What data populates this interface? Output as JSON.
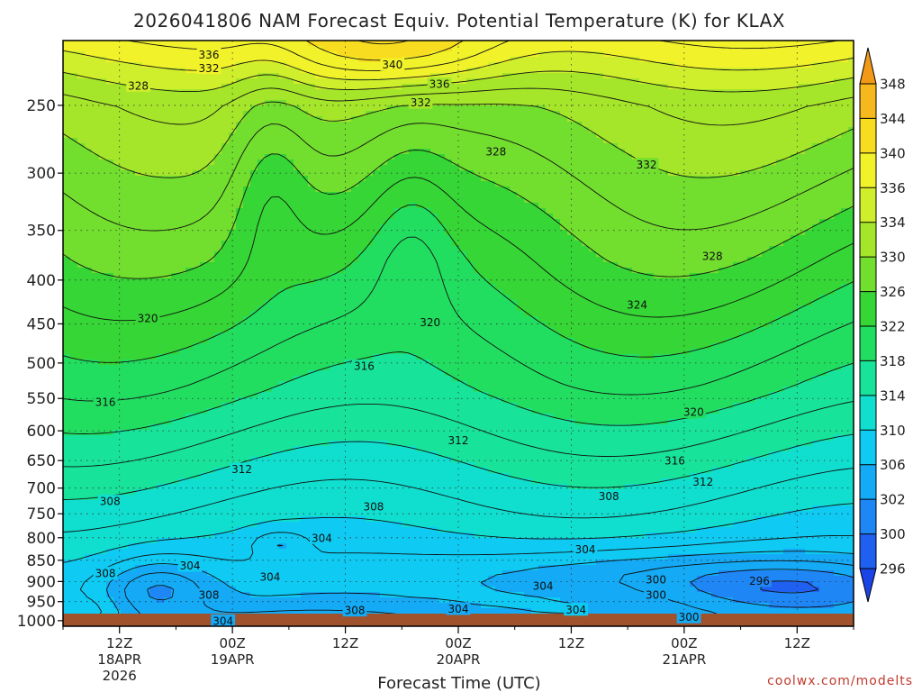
{
  "chart_data": {
    "type": "heatmap",
    "title": "2026041806 NAM Forecast Equiv. Potential Temperature (K) for KLAX",
    "xlabel": "Forecast Time (UTC)",
    "ylabel": "",
    "credit": "coolwx.com/modelts",
    "x_unit": "forecast hours from 2026-04-18 06Z",
    "xlim": [
      0,
      84
    ],
    "y_scale": "log",
    "ylim": [
      1015,
      210
    ],
    "y_ticks": [
      250,
      300,
      350,
      400,
      450,
      500,
      550,
      600,
      650,
      700,
      750,
      800,
      850,
      900,
      950,
      1000
    ],
    "x_ticks": [
      {
        "hour": 6,
        "label": "12Z",
        "sub": [
          "18APR",
          "2026"
        ]
      },
      {
        "hour": 18,
        "label": "00Z",
        "sub": [
          "19APR"
        ]
      },
      {
        "hour": 30,
        "label": "12Z",
        "sub": []
      },
      {
        "hour": 42,
        "label": "00Z",
        "sub": [
          "20APR"
        ]
      },
      {
        "hour": 54,
        "label": "12Z",
        "sub": []
      },
      {
        "hour": 66,
        "label": "00Z",
        "sub": [
          "21APR"
        ]
      },
      {
        "hour": 78,
        "label": "12Z",
        "sub": []
      }
    ],
    "colorbar": {
      "levels": [
        296,
        300,
        302,
        306,
        310,
        314,
        318,
        322,
        326,
        330,
        334,
        336,
        340,
        344,
        348
      ],
      "colors": [
        "#1a44e6",
        "#2060f0",
        "#1e86f5",
        "#14aaf5",
        "#0fcaf2",
        "#10dfd0",
        "#18e39a",
        "#22de60",
        "#35d635",
        "#72de2e",
        "#a6e62a",
        "#cfee2c",
        "#f2f22a",
        "#f8dc1f",
        "#f6b81c",
        "#f29a18"
      ]
    },
    "ground_color": "#a0522d",
    "contour_labels": [
      {
        "x": 15.5,
        "p": 218,
        "text": "336"
      },
      {
        "x": 15.5,
        "p": 226,
        "text": "332"
      },
      {
        "x": 8,
        "p": 237,
        "text": "328"
      },
      {
        "x": 35,
        "p": 224,
        "text": "340"
      },
      {
        "x": 40,
        "p": 236,
        "text": "336"
      },
      {
        "x": 38,
        "p": 248,
        "text": "332"
      },
      {
        "x": 46,
        "p": 283,
        "text": "328"
      },
      {
        "x": 62,
        "p": 293,
        "text": "332"
      },
      {
        "x": 69,
        "p": 375,
        "text": "328"
      },
      {
        "x": 61,
        "p": 427,
        "text": "324"
      },
      {
        "x": 9,
        "p": 443,
        "text": "320"
      },
      {
        "x": 39,
        "p": 448,
        "text": "320"
      },
      {
        "x": 32,
        "p": 504,
        "text": "316"
      },
      {
        "x": 67,
        "p": 570,
        "text": "320"
      },
      {
        "x": 4.5,
        "p": 555,
        "text": "316"
      },
      {
        "x": 42,
        "p": 615,
        "text": "312"
      },
      {
        "x": 65,
        "p": 650,
        "text": "316"
      },
      {
        "x": 19,
        "p": 665,
        "text": "312"
      },
      {
        "x": 68,
        "p": 688,
        "text": "312"
      },
      {
        "x": 5,
        "p": 725,
        "text": "308"
      },
      {
        "x": 33,
        "p": 735,
        "text": "308"
      },
      {
        "x": 58,
        "p": 715,
        "text": "308"
      },
      {
        "x": 27.5,
        "p": 800,
        "text": "304"
      },
      {
        "x": 55.5,
        "p": 825,
        "text": "304"
      },
      {
        "x": 13.5,
        "p": 862,
        "text": "304"
      },
      {
        "x": 4.5,
        "p": 880,
        "text": "308"
      },
      {
        "x": 22,
        "p": 888,
        "text": "304"
      },
      {
        "x": 15.5,
        "p": 932,
        "text": "308"
      },
      {
        "x": 63,
        "p": 895,
        "text": "300"
      },
      {
        "x": 51,
        "p": 910,
        "text": "304"
      },
      {
        "x": 63,
        "p": 932,
        "text": "300"
      },
      {
        "x": 74,
        "p": 898,
        "text": "296"
      },
      {
        "x": 31,
        "p": 972,
        "text": "308"
      },
      {
        "x": 42,
        "p": 968,
        "text": "304"
      },
      {
        "x": 54.5,
        "p": 970,
        "text": "304"
      },
      {
        "x": 17,
        "p": 1000,
        "text": "304"
      },
      {
        "x": 66.5,
        "p": 990,
        "text": "300"
      }
    ]
  }
}
